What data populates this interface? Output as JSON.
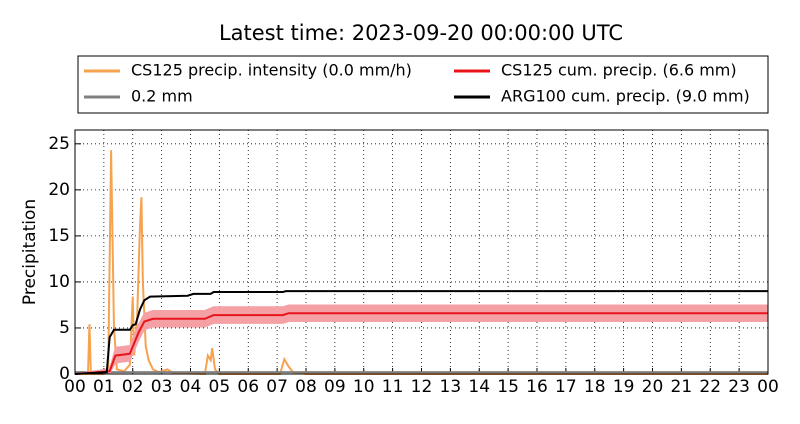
{
  "chart_data": {
    "type": "line",
    "title": "Latest time: 2023-09-20 00:00:00 UTC",
    "y_label": "Precipitation",
    "xlim": [
      0,
      24
    ],
    "xticks": [
      {
        "value": 0,
        "label": "00"
      },
      {
        "value": 1,
        "label": "01"
      },
      {
        "value": 2,
        "label": "02"
      },
      {
        "value": 3,
        "label": "03"
      },
      {
        "value": 4,
        "label": "04"
      },
      {
        "value": 5,
        "label": "05"
      },
      {
        "value": 6,
        "label": "06"
      },
      {
        "value": 7,
        "label": "07"
      },
      {
        "value": 8,
        "label": "08"
      },
      {
        "value": 9,
        "label": "09"
      },
      10,
      11,
      12,
      13,
      14,
      15,
      16,
      17,
      18,
      19,
      20,
      21,
      22,
      23,
      {
        "value": 24,
        "label": "00"
      }
    ],
    "ylim": [
      0,
      26.5
    ],
    "yticks": [
      0,
      5,
      10,
      15,
      20,
      25
    ],
    "grid": true,
    "series": [
      {
        "name": "CS125 precip. intensity (0.0 mm/h)",
        "color": "#f6a24f",
        "x": [
          0,
          0.45,
          0.5,
          0.55,
          1.0,
          1.15,
          1.25,
          1.35,
          1.45,
          1.7,
          1.9,
          2.0,
          2.05,
          2.15,
          2.25,
          2.3,
          2.35,
          2.45,
          2.55,
          2.7,
          2.9,
          3.2,
          3.4,
          4.5,
          4.6,
          4.7,
          4.75,
          4.85,
          5.0,
          7.1,
          7.25,
          7.4,
          7.55,
          8,
          24
        ],
        "values": [
          0,
          0,
          5.4,
          0,
          0,
          0.5,
          24.3,
          5,
          0.5,
          0.3,
          1,
          8.4,
          2,
          6,
          16,
          19.2,
          10,
          3,
          1.5,
          0.5,
          0.2,
          0.5,
          0.1,
          0,
          2,
          1.5,
          2.8,
          0.5,
          0,
          0,
          1.6,
          0.8,
          0.2,
          0,
          0
        ]
      },
      {
        "name": "0.2 mm",
        "color": "#808080",
        "x": [
          0,
          24
        ],
        "values": [
          0.2,
          0.2
        ]
      },
      {
        "name": "CS125 cum. precip. (6.6 mm)",
        "color": "#e8141c",
        "band_color": "#f5a0a4",
        "x": [
          0,
          1.2,
          1.4,
          1.9,
          2.2,
          2.4,
          2.7,
          4.5,
          4.8,
          7.2,
          7.4,
          24
        ],
        "values": [
          0,
          0.3,
          2.0,
          2.2,
          4.5,
          5.7,
          6.0,
          6.0,
          6.4,
          6.4,
          6.6,
          6.6
        ],
        "lower": [
          0,
          0,
          1.2,
          1.4,
          3.6,
          4.8,
          5.1,
          5.1,
          5.5,
          5.5,
          5.7,
          5.7
        ],
        "upper": [
          0,
          0.6,
          2.9,
          3.1,
          5.4,
          6.6,
          6.9,
          6.9,
          7.3,
          7.3,
          7.5,
          7.5
        ]
      },
      {
        "name": "ARG100 cum. precip. (9.0 mm)",
        "color": "#000000",
        "x": [
          0,
          1.1,
          1.2,
          1.35,
          1.9,
          2.0,
          2.1,
          2.25,
          2.4,
          2.6,
          3.9,
          4.1,
          4.7,
          4.8,
          7.2,
          7.3,
          24
        ],
        "values": [
          0,
          0.2,
          4,
          4.8,
          4.8,
          5.3,
          5.4,
          7,
          8,
          8.4,
          8.5,
          8.7,
          8.7,
          8.9,
          8.9,
          9.0,
          9.0
        ]
      }
    ]
  }
}
